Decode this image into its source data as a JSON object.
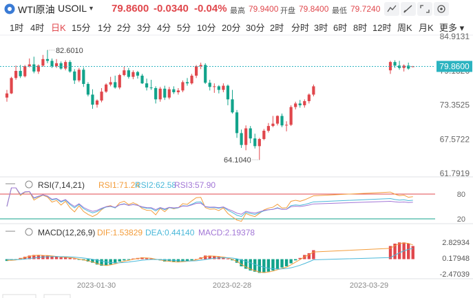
{
  "header": {
    "symbol": "WTI原油",
    "code": "USOIL",
    "price": "79.8600",
    "change": "-0.0340",
    "change_pct": "-0.04%",
    "high_label": "最高",
    "high": "79.9400",
    "open_label": "开盘",
    "open": "79.8400",
    "low_label": "最低",
    "low": "79.7240",
    "colors": {
      "up": "#e0474c",
      "down": "#12a38b",
      "accent": "#3a7bd5"
    }
  },
  "periods": [
    "1时",
    "4时",
    "日K",
    "15分",
    "1分",
    "2分",
    "3分",
    "4分",
    "5分",
    "10分",
    "20分",
    "30分",
    "2时",
    "分时",
    "3时",
    "6时",
    "8时",
    "12时",
    "周K",
    "月K",
    "更多"
  ],
  "active_period": "日K",
  "icons": [
    "indicator-icon",
    "draw-icon",
    "expand-icon",
    "settings-icon"
  ],
  "chart_data": [
    {
      "type": "candlestick",
      "title": "",
      "y_ticks": [
        "84.9131",
        "79.1326",
        "73.3525",
        "67.5722",
        "61.7919"
      ],
      "ylim": [
        61.7919,
        84.9131
      ],
      "last_price": "79.8600",
      "max_label": "82.6010",
      "min_label": "64.1040",
      "x_ticks": [
        "2023-01-30",
        "2023-02-28",
        "2023-03-29"
      ],
      "candles": [
        {
          "o": 74.6,
          "h": 75.9,
          "l": 73.9,
          "c": 75.3
        },
        {
          "o": 75.3,
          "h": 78.1,
          "l": 75.2,
          "c": 77.9
        },
        {
          "o": 77.9,
          "h": 80.0,
          "l": 77.6,
          "c": 79.1
        },
        {
          "o": 79.1,
          "h": 80.1,
          "l": 77.9,
          "c": 78.2
        },
        {
          "o": 78.2,
          "h": 80.1,
          "l": 78.0,
          "c": 79.9
        },
        {
          "o": 79.9,
          "h": 81.2,
          "l": 79.7,
          "c": 80.2
        },
        {
          "o": 80.2,
          "h": 81.5,
          "l": 78.7,
          "c": 79.0
        },
        {
          "o": 79.0,
          "h": 80.2,
          "l": 78.6,
          "c": 80.0
        },
        {
          "o": 80.0,
          "h": 81.8,
          "l": 79.8,
          "c": 81.1
        },
        {
          "o": 81.1,
          "h": 82.6,
          "l": 80.4,
          "c": 80.8
        },
        {
          "o": 80.8,
          "h": 81.2,
          "l": 79.6,
          "c": 79.9
        },
        {
          "o": 79.9,
          "h": 81.1,
          "l": 79.6,
          "c": 80.4
        },
        {
          "o": 80.4,
          "h": 80.7,
          "l": 79.3,
          "c": 79.5
        },
        {
          "o": 79.5,
          "h": 80.9,
          "l": 79.2,
          "c": 80.6
        },
        {
          "o": 80.6,
          "h": 80.9,
          "l": 78.8,
          "c": 79.0
        },
        {
          "o": 79.0,
          "h": 79.4,
          "l": 76.9,
          "c": 77.5
        },
        {
          "o": 77.5,
          "h": 79.6,
          "l": 77.2,
          "c": 79.3
        },
        {
          "o": 79.3,
          "h": 79.7,
          "l": 76.4,
          "c": 76.9
        },
        {
          "o": 76.9,
          "h": 77.2,
          "l": 74.8,
          "c": 75.1
        },
        {
          "o": 75.1,
          "h": 76.0,
          "l": 72.7,
          "c": 73.4
        },
        {
          "o": 73.4,
          "h": 74.3,
          "l": 72.9,
          "c": 74.1
        },
        {
          "o": 74.1,
          "h": 76.2,
          "l": 73.8,
          "c": 75.6
        },
        {
          "o": 75.6,
          "h": 77.0,
          "l": 75.4,
          "c": 76.8
        },
        {
          "o": 76.8,
          "h": 78.1,
          "l": 76.5,
          "c": 77.2
        },
        {
          "o": 77.2,
          "h": 78.3,
          "l": 76.1,
          "c": 76.3
        },
        {
          "o": 76.3,
          "h": 78.6,
          "l": 76.0,
          "c": 78.4
        },
        {
          "o": 78.4,
          "h": 79.8,
          "l": 78.2,
          "c": 79.2
        },
        {
          "o": 79.2,
          "h": 79.6,
          "l": 77.8,
          "c": 78.1
        },
        {
          "o": 78.1,
          "h": 79.2,
          "l": 77.7,
          "c": 78.9
        },
        {
          "o": 78.9,
          "h": 79.1,
          "l": 77.8,
          "c": 78.3
        },
        {
          "o": 78.3,
          "h": 78.6,
          "l": 76.9,
          "c": 77.0
        },
        {
          "o": 77.0,
          "h": 77.8,
          "l": 75.8,
          "c": 76.3
        },
        {
          "o": 76.3,
          "h": 77.6,
          "l": 75.9,
          "c": 76.2
        },
        {
          "o": 76.2,
          "h": 76.5,
          "l": 73.6,
          "c": 74.3
        },
        {
          "o": 74.3,
          "h": 76.4,
          "l": 73.9,
          "c": 76.1
        },
        {
          "o": 76.1,
          "h": 76.6,
          "l": 74.2,
          "c": 74.6
        },
        {
          "o": 74.6,
          "h": 76.4,
          "l": 74.3,
          "c": 76.0
        },
        {
          "o": 76.0,
          "h": 76.5,
          "l": 75.2,
          "c": 75.5
        },
        {
          "o": 75.5,
          "h": 76.2,
          "l": 75.1,
          "c": 75.8
        },
        {
          "o": 75.8,
          "h": 77.5,
          "l": 75.5,
          "c": 77.2
        },
        {
          "o": 77.2,
          "h": 77.9,
          "l": 76.6,
          "c": 77.0
        },
        {
          "o": 77.0,
          "h": 78.6,
          "l": 76.8,
          "c": 78.3
        },
        {
          "o": 78.3,
          "h": 80.1,
          "l": 77.9,
          "c": 79.9
        },
        {
          "o": 79.9,
          "h": 80.5,
          "l": 79.4,
          "c": 80.1
        },
        {
          "o": 80.1,
          "h": 80.4,
          "l": 76.9,
          "c": 77.1
        },
        {
          "o": 77.1,
          "h": 77.6,
          "l": 75.8,
          "c": 76.4
        },
        {
          "o": 76.4,
          "h": 77.0,
          "l": 75.4,
          "c": 76.5
        },
        {
          "o": 76.5,
          "h": 76.7,
          "l": 75.3,
          "c": 75.9
        },
        {
          "o": 75.9,
          "h": 77.0,
          "l": 75.5,
          "c": 76.6
        },
        {
          "o": 76.6,
          "h": 76.8,
          "l": 73.3,
          "c": 74.3
        },
        {
          "o": 74.3,
          "h": 75.9,
          "l": 71.9,
          "c": 72.1
        },
        {
          "o": 72.1,
          "h": 72.5,
          "l": 67.8,
          "c": 68.6
        },
        {
          "o": 68.6,
          "h": 69.2,
          "l": 66.1,
          "c": 66.6
        },
        {
          "o": 66.6,
          "h": 69.9,
          "l": 65.7,
          "c": 69.4
        },
        {
          "o": 69.4,
          "h": 69.8,
          "l": 66.9,
          "c": 67.7
        },
        {
          "o": 67.7,
          "h": 68.5,
          "l": 66.0,
          "c": 66.4
        },
        {
          "o": 66.4,
          "h": 67.8,
          "l": 64.1,
          "c": 67.6
        },
        {
          "o": 67.6,
          "h": 69.3,
          "l": 67.4,
          "c": 69.0
        },
        {
          "o": 69.0,
          "h": 70.3,
          "l": 68.7,
          "c": 69.8
        },
        {
          "o": 69.8,
          "h": 71.5,
          "l": 69.6,
          "c": 70.2
        },
        {
          "o": 70.2,
          "h": 71.6,
          "l": 69.9,
          "c": 71.5
        },
        {
          "o": 71.5,
          "h": 71.9,
          "l": 69.6,
          "c": 69.9
        },
        {
          "o": 69.9,
          "h": 70.6,
          "l": 68.9,
          "c": 70.0
        },
        {
          "o": 70.0,
          "h": 73.3,
          "l": 69.8,
          "c": 73.0
        },
        {
          "o": 73.0,
          "h": 73.9,
          "l": 72.6,
          "c": 73.6
        },
        {
          "o": 73.6,
          "h": 74.2,
          "l": 72.9,
          "c": 73.3
        },
        {
          "o": 73.3,
          "h": 74.3,
          "l": 72.9,
          "c": 74.0
        },
        {
          "o": 74.0,
          "h": 75.3,
          "l": 73.6,
          "c": 75.1
        },
        {
          "o": 75.1,
          "h": 76.8,
          "l": 74.8,
          "c": 76.5
        }
      ],
      "candles_right": [
        {
          "o": 79.2,
          "h": 80.8,
          "l": 78.6,
          "c": 80.6
        },
        {
          "o": 80.6,
          "h": 80.9,
          "l": 79.6,
          "c": 80.0
        },
        {
          "o": 80.0,
          "h": 80.8,
          "l": 79.3,
          "c": 79.6
        },
        {
          "o": 79.6,
          "h": 80.2,
          "l": 79.0,
          "c": 80.0
        },
        {
          "o": 80.0,
          "h": 80.5,
          "l": 79.3,
          "c": 79.5
        },
        {
          "o": 79.84,
          "h": 79.94,
          "l": 79.72,
          "c": 79.86
        }
      ]
    },
    {
      "type": "line",
      "name_label": "RSI(7,14,21)",
      "series": [
        {
          "name": "RSI1:71.24",
          "color": "#f39c3a"
        },
        {
          "name": "RSI2:62.58",
          "color": "#4ab8d9"
        },
        {
          "name": "RSI3:57.90",
          "color": "#a276d6"
        }
      ],
      "y_ticks": [
        "80",
        "20"
      ],
      "ylim": [
        0,
        100
      ]
    },
    {
      "type": "bar",
      "name_label": "MACD(12,26,9)",
      "series": [
        {
          "name": "DIF:1.53829",
          "color": "#f39c3a"
        },
        {
          "name": "DEA:0.44140",
          "color": "#4ab8d9"
        },
        {
          "name": "MACD:2.19378",
          "color": "#a276d6"
        }
      ],
      "y_ticks": [
        "2.82934",
        "0.17948",
        "-2.47039"
      ],
      "ylim": [
        -2.47039,
        2.82934
      ],
      "hist": [
        -0.3,
        -0.2,
        -0.1,
        0.2,
        0.4,
        0.6,
        0.7,
        0.7,
        0.6,
        0.6,
        0.5,
        0.4,
        0.3,
        0.3,
        0.2,
        0.1,
        -0.1,
        -0.2,
        -0.4,
        -0.6,
        -0.9,
        -1.1,
        -1.1,
        -0.9,
        -0.7,
        -0.4,
        -0.2,
        -0.1,
        0.1,
        0.2,
        0.3,
        0.2,
        0.1,
        -0.1,
        -0.2,
        -0.4,
        -0.4,
        -0.5,
        -0.5,
        -0.4,
        -0.3,
        -0.2,
        0.0,
        0.3,
        0.6,
        0.6,
        0.5,
        0.4,
        0.3,
        0.1,
        -0.2,
        -0.6,
        -1.2,
        -1.6,
        -1.9,
        -2.1,
        -2.3,
        -2.3,
        -2.1,
        -1.9,
        -1.6,
        -1.4,
        -1.2,
        -0.7,
        -0.2,
        0.2,
        0.7,
        1.0,
        1.5
      ],
      "hist_right": [
        2.2,
        2.6,
        2.8,
        2.8,
        2.6,
        2.2
      ]
    }
  ]
}
